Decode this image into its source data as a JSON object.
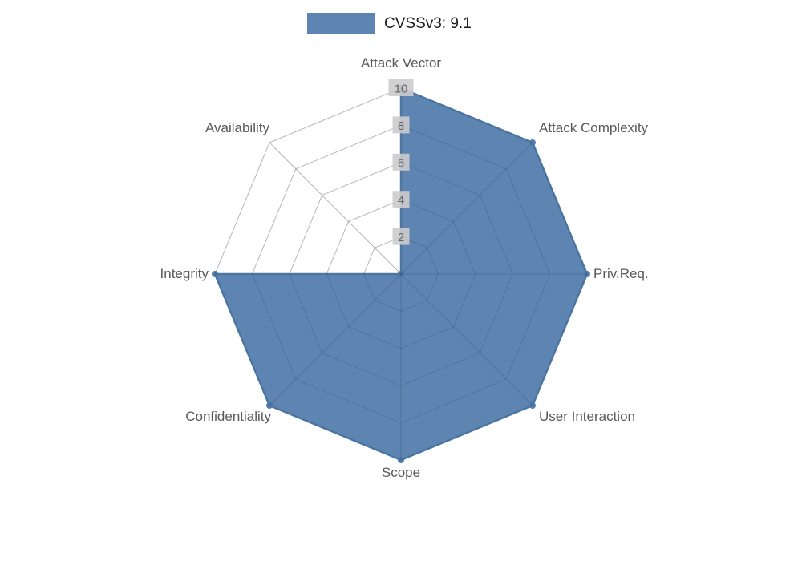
{
  "legend": {
    "label": "CVSSv3: 9.1"
  },
  "chart_data": {
    "type": "radar",
    "title": "CVSSv3: 9.1",
    "categories": [
      "Attack Vector",
      "Attack Complexity",
      "Priv.Req.",
      "User Interaction",
      "Scope",
      "Confidentiality",
      "Integrity",
      "Availability"
    ],
    "series": [
      {
        "name": "CVSSv3: 9.1",
        "values": [
          10,
          10,
          10,
          10,
          10,
          10,
          10,
          0
        ]
      }
    ],
    "ticks": [
      2,
      4,
      6,
      8,
      10
    ],
    "rlim": [
      0,
      10
    ],
    "grid": true,
    "legend_position": "top-center",
    "colors": {
      "fill": "#4c78a8",
      "fill_opacity": 0.9,
      "grid": "#cccccc",
      "label": "#595959",
      "tick_text": "#666666",
      "tick_bg": "#cccccc"
    }
  }
}
